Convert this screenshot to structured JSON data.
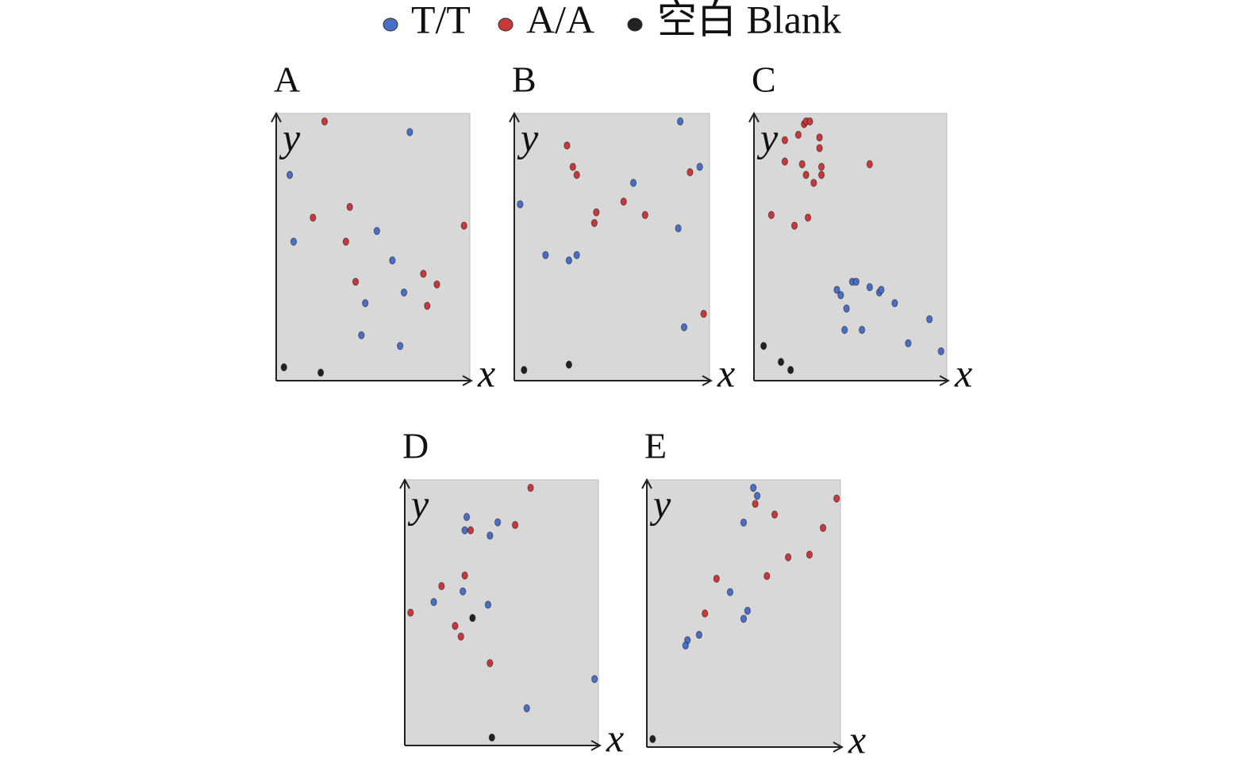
{
  "legend": {
    "items": [
      {
        "name": "T/T",
        "color": "#4a6fc7"
      },
      {
        "name": "A/A",
        "color": "#c8393b"
      },
      {
        "name": "空白 Blank",
        "color": "#222222"
      }
    ]
  },
  "chart_data": [
    {
      "type": "scatter",
      "title": "A",
      "x_label": "x",
      "y_label": "y",
      "xlim": [
        0,
        100
      ],
      "ylim": [
        0,
        100
      ],
      "series": [
        {
          "x": [
            69,
            7,
            9,
            52,
            60,
            66,
            46,
            44,
            64
          ],
          "values": [
            93,
            77,
            52,
            56,
            45,
            33,
            29,
            17,
            13
          ]
        },
        {
          "x": [
            25,
            19,
            38,
            36,
            41,
            76,
            83,
            78,
            97
          ],
          "values": [
            97,
            61,
            65,
            52,
            37,
            40,
            36,
            28,
            58
          ]
        },
        {
          "x": [
            4,
            23
          ],
          "values": [
            5,
            3
          ]
        }
      ]
    },
    {
      "type": "scatter",
      "title": "B",
      "x_label": "x",
      "y_label": "y",
      "xlim": [
        0,
        100
      ],
      "ylim": [
        0,
        100
      ],
      "series": [
        {
          "x": [
            85,
            95,
            3,
            61,
            84,
            16,
            28,
            32,
            87
          ],
          "values": [
            97,
            80,
            66,
            74,
            57,
            47,
            45,
            47,
            20
          ]
        },
        {
          "x": [
            27,
            30,
            32,
            42,
            41,
            56,
            67,
            90,
            97
          ],
          "values": [
            88,
            80,
            77,
            63,
            59,
            67,
            62,
            78,
            25
          ]
        },
        {
          "x": [
            5,
            28
          ],
          "values": [
            4,
            6
          ]
        }
      ]
    },
    {
      "type": "scatter",
      "title": "C",
      "x_label": "x",
      "y_label": "y",
      "xlim": [
        0,
        100
      ],
      "ylim": [
        0,
        100
      ],
      "series": [
        {
          "x": [
            43,
            45,
            51,
            53,
            60,
            65,
            66,
            48,
            73,
            47,
            56,
            91,
            80,
            97
          ],
          "values": [
            34,
            32,
            37,
            37,
            35,
            33,
            34,
            27,
            29,
            19,
            19,
            23,
            14,
            11
          ]
        },
        {
          "x": [
            16,
            23,
            26,
            27,
            29,
            34,
            34,
            35,
            35,
            16,
            25,
            27,
            31,
            60,
            9,
            21,
            28
          ],
          "values": [
            90,
            92,
            96,
            97,
            97,
            91,
            87,
            80,
            77,
            82,
            81,
            77,
            74,
            81,
            62,
            58,
            61
          ]
        },
        {
          "x": [
            5,
            14,
            19
          ],
          "values": [
            13,
            7,
            4
          ]
        }
      ]
    },
    {
      "type": "scatter",
      "title": "D",
      "x_label": "x",
      "y_label": "y",
      "xlim": [
        0,
        100
      ],
      "ylim": [
        0,
        100
      ],
      "series": [
        {
          "x": [
            32,
            31,
            44,
            48,
            30,
            15,
            43,
            63,
            98
          ],
          "values": [
            86,
            81,
            79,
            84,
            58,
            54,
            53,
            14,
            25
          ]
        },
        {
          "x": [
            65,
            57,
            34,
            31,
            19,
            3,
            26,
            29,
            44
          ],
          "values": [
            97,
            83,
            81,
            64,
            60,
            50,
            45,
            41,
            31
          ]
        },
        {
          "x": [
            35,
            45
          ],
          "values": [
            48,
            3
          ]
        }
      ]
    },
    {
      "type": "scatter",
      "title": "E",
      "x_label": "x",
      "y_label": "y",
      "xlim": [
        0,
        100
      ],
      "ylim": [
        0,
        100
      ],
      "series": [
        {
          "x": [
            55,
            57,
            50,
            43,
            52,
            50,
            27,
            21,
            20
          ],
          "values": [
            97,
            94,
            84,
            58,
            51,
            48,
            42,
            40,
            38
          ]
        },
        {
          "x": [
            56,
            66,
            98,
            91,
            36,
            62,
            73,
            84,
            30
          ],
          "values": [
            91,
            87,
            93,
            82,
            63,
            64,
            71,
            72,
            50
          ]
        },
        {
          "x": [
            3
          ],
          "values": [
            3
          ]
        }
      ]
    }
  ]
}
